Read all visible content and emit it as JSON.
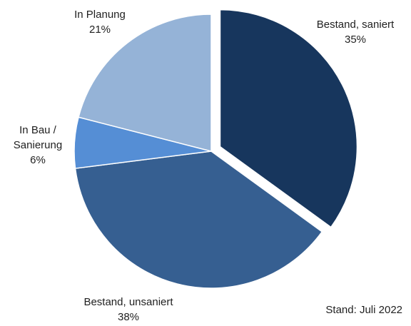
{
  "chart_data": {
    "type": "pie",
    "slices": [
      {
        "label": "Bestand, saniert",
        "value": 35,
        "display": "35%",
        "color": "#17365d"
      },
      {
        "label": "Bestand, unsaniert",
        "value": 38,
        "display": "38%",
        "color": "#365f91"
      },
      {
        "label": "In Bau / Sanierung",
        "label_lines": [
          "In Bau /",
          "Sanierung"
        ],
        "value": 6,
        "display": "6%",
        "color": "#558ed5"
      },
      {
        "label": "In Planung",
        "value": 21,
        "display": "21%",
        "color": "#95b3d7"
      }
    ],
    "exploded": [
      "Bestand, saniert"
    ],
    "legend": "none"
  },
  "footnote": "Stand: Juli 2022"
}
